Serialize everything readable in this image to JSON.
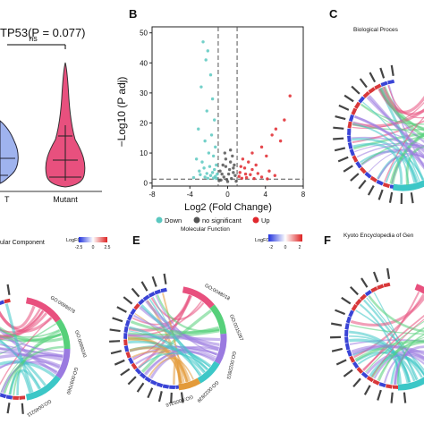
{
  "panels": {
    "A": {
      "label": "",
      "title": "TP53(P = 0.077)",
      "sig": "ns",
      "groups": [
        "T",
        "Mutant"
      ],
      "colors": [
        "#7f97e8",
        "#e8507e"
      ]
    },
    "B": {
      "label": "B",
      "ylabel": "−Log10 (P adj)",
      "xlabel": "Log2 (Fold Change)",
      "legend": [
        {
          "name": "Down",
          "color": "#5bc8c0"
        },
        {
          "name": "no significant",
          "color": "#555555"
        },
        {
          "name": "Up",
          "color": "#e0282e"
        }
      ]
    },
    "C": {
      "label": "C",
      "title": "Biological Proces"
    },
    "D": {
      "label": "",
      "title": "ular Component",
      "legend_title": "LogFC",
      "ticks": [
        "-2.5",
        "0",
        "2.5"
      ],
      "go_terms": [
        "GO:0098978",
        "GO:0099240",
        "GO:0097060",
        "GO:0045211"
      ]
    },
    "E": {
      "label": "E",
      "title": "Molecular Function",
      "legend_title": "LogFC",
      "ticks": [
        "-2",
        "0",
        "2"
      ],
      "go_terms": [
        "GO:0048018",
        "GO:0015267",
        "GO:0022803",
        "GO:0022839",
        "GO:0005216"
      ]
    },
    "F": {
      "label": "F",
      "title": "Kyoto Encyclopedia of Gen"
    }
  },
  "chart_data": [
    {
      "type": "violin",
      "title": "TP53(P = 0.077)",
      "categories": [
        "T",
        "Mutant"
      ],
      "annotation": "ns"
    },
    {
      "type": "scatter",
      "xlabel": "Log2 (Fold Change)",
      "ylabel": "−Log10 (P adj)",
      "xlim": [
        -8,
        8
      ],
      "ylim": [
        -1,
        52
      ],
      "xticks": [
        -8,
        -4,
        0,
        4,
        8
      ],
      "yticks": [
        0,
        10,
        20,
        30,
        40,
        50
      ],
      "thresholds": {
        "x": [
          -1,
          1
        ],
        "y": 1.3
      },
      "series": [
        {
          "name": "Down",
          "color": "#5bc8c0",
          "points": [
            [
              -2.6,
              47
            ],
            [
              -2.1,
              44
            ],
            [
              -2.3,
              41
            ],
            [
              -1.8,
              36
            ],
            [
              -2.8,
              32
            ],
            [
              -1.6,
              28
            ],
            [
              -2.2,
              24
            ],
            [
              -1.4,
              21
            ],
            [
              -3.1,
              18
            ],
            [
              -1.7,
              16
            ],
            [
              -2.4,
              14
            ],
            [
              -1.3,
              12
            ],
            [
              -2.0,
              10
            ],
            [
              -1.5,
              9
            ],
            [
              -3.3,
              8
            ],
            [
              -2.7,
              7
            ],
            [
              -1.2,
              6
            ],
            [
              -1.9,
              5.5
            ],
            [
              -2.5,
              5
            ],
            [
              -1.4,
              4.5
            ],
            [
              -3.0,
              4
            ],
            [
              -1.6,
              3.5
            ],
            [
              -2.2,
              3.2
            ],
            [
              -1.1,
              3
            ],
            [
              -2.9,
              2.8
            ],
            [
              -1.8,
              2.5
            ],
            [
              -1.3,
              2.2
            ],
            [
              -2.4,
              2
            ],
            [
              -3.6,
              1.8
            ],
            [
              -1.5,
              1.7
            ],
            [
              -2.1,
              1.6
            ],
            [
              -1.2,
              1.5
            ]
          ]
        },
        {
          "name": "no significant",
          "color": "#555555",
          "points": [
            [
              -0.8,
              4
            ],
            [
              -0.5,
              6
            ],
            [
              -0.2,
              8
            ],
            [
              0.3,
              7
            ],
            [
              0.6,
              5
            ],
            [
              0.1,
              3
            ],
            [
              -0.4,
              2
            ],
            [
              0.4,
              1.5
            ],
            [
              -0.7,
              1
            ],
            [
              0.8,
              2.5
            ],
            [
              -0.1,
              1.2
            ],
            [
              0.2,
              4.5
            ],
            [
              -0.6,
              3
            ],
            [
              0.5,
              9
            ],
            [
              -0.3,
              10
            ],
            [
              0.7,
              6
            ],
            [
              0.0,
              0.5
            ],
            [
              -0.9,
              0.8
            ],
            [
              0.9,
              0.6
            ],
            [
              0.3,
              11
            ],
            [
              -0.2,
              5.5
            ],
            [
              0.6,
              3.5
            ]
          ]
        },
        {
          "name": "Up",
          "color": "#e0282e",
          "points": [
            [
              6.6,
              29
            ],
            [
              6.0,
              21
            ],
            [
              5.1,
              18
            ],
            [
              4.7,
              16
            ],
            [
              5.6,
              14
            ],
            [
              3.6,
              12
            ],
            [
              2.6,
              10
            ],
            [
              4.1,
              9
            ],
            [
              1.6,
              8
            ],
            [
              2.2,
              7
            ],
            [
              3.0,
              6
            ],
            [
              1.4,
              5.5
            ],
            [
              1.8,
              5
            ],
            [
              2.6,
              4.5
            ],
            [
              4.4,
              4
            ],
            [
              1.3,
              3.5
            ],
            [
              3.2,
              3.2
            ],
            [
              1.9,
              3
            ],
            [
              2.4,
              2.8
            ],
            [
              5.0,
              2.5
            ],
            [
              1.2,
              2.2
            ],
            [
              3.6,
              2
            ],
            [
              2.0,
              1.8
            ],
            [
              1.5,
              1.6
            ],
            [
              2.8,
              1.5
            ],
            [
              4.2,
              1.4
            ]
          ]
        }
      ]
    },
    {
      "type": "chord",
      "title": "Biological Proces"
    },
    {
      "type": "chord",
      "title": "ular Component",
      "categories": [
        "GO:0098978",
        "GO:0099240",
        "GO:0097060",
        "GO:0045211"
      ]
    },
    {
      "type": "chord",
      "title": "Molecular Function",
      "categories": [
        "GO:0048018",
        "GO:0015267",
        "GO:0022803",
        "GO:0022839",
        "GO:0005216"
      ]
    },
    {
      "type": "chord",
      "title": "Kyoto Encyclopedia of Gen"
    }
  ]
}
